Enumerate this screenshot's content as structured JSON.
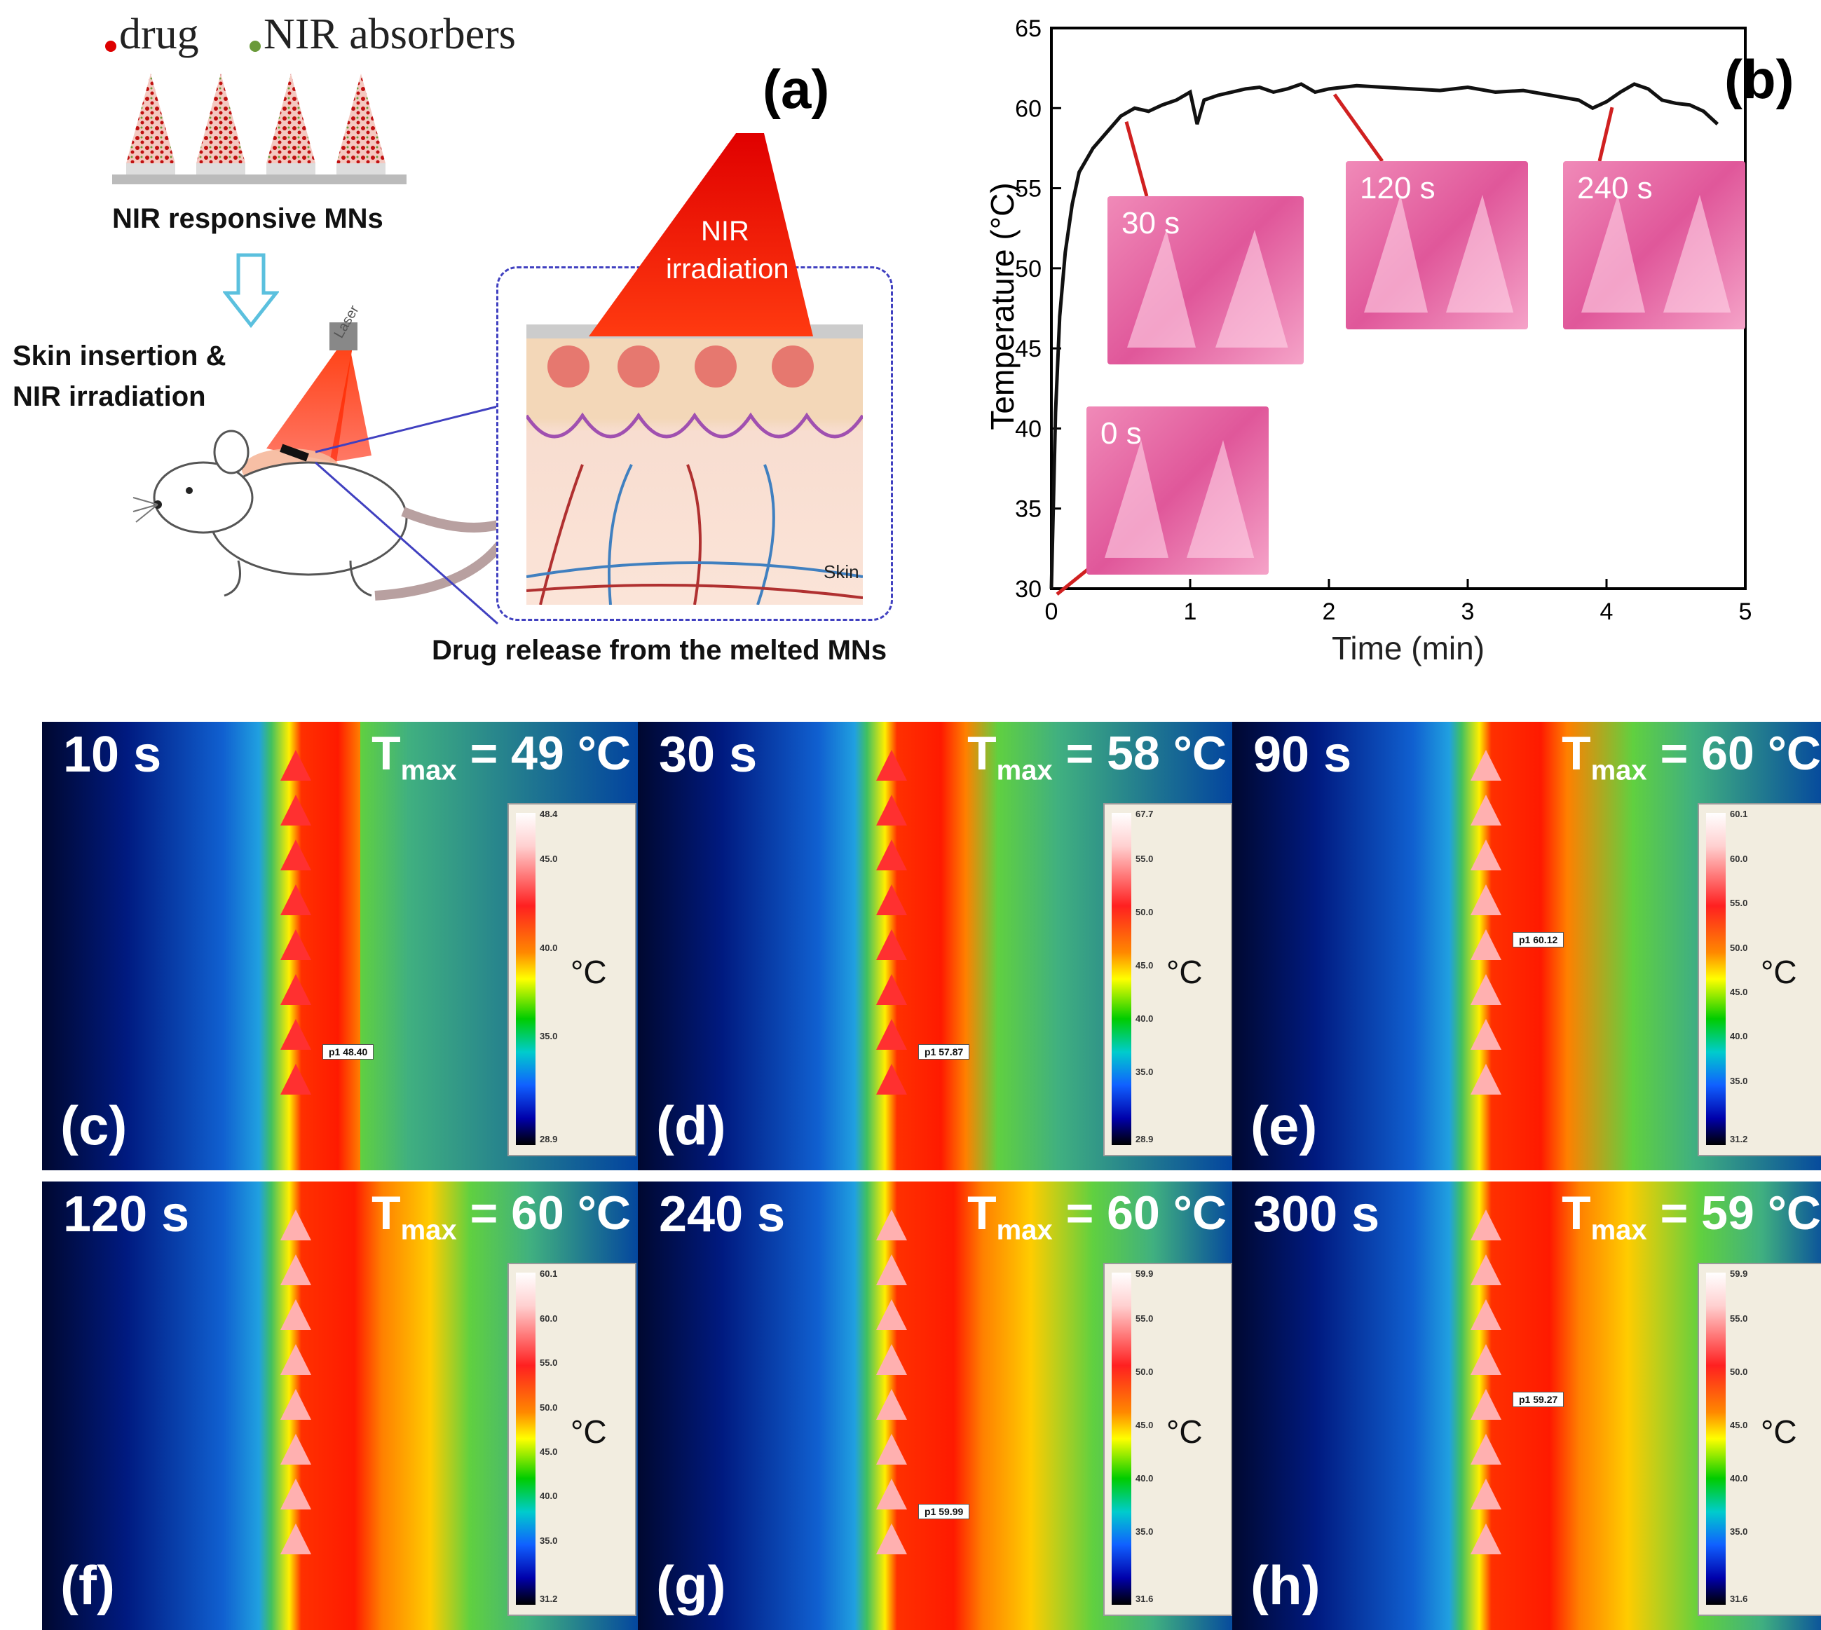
{
  "panel_a": {
    "legend_drug": "drug",
    "legend_nir": "NIR absorbers",
    "tag": "(a)",
    "caption_mns": "NIR responsive MNs",
    "caption_insertion_1": "Skin insertion &",
    "caption_insertion_2": "NIR irradiation",
    "laser_label": "Laser",
    "nir_label_1": "NIR",
    "nir_label_2": "irradiation",
    "skin_label": "Skin",
    "caption_release": "Drug release from the melted MNs"
  },
  "chart_data": {
    "type": "line",
    "title": "",
    "tag": "(b)",
    "xlabel": "Time (min)",
    "ylabel": "Temperature (°C)",
    "xlim": [
      0,
      5
    ],
    "ylim": [
      30,
      65
    ],
    "xticks": [
      "0",
      "1",
      "2",
      "3",
      "4",
      "5"
    ],
    "yticks": [
      "30",
      "35",
      "40",
      "45",
      "50",
      "55",
      "60",
      "65"
    ],
    "series": [
      {
        "name": "temperature",
        "x": [
          0,
          0.03,
          0.06,
          0.1,
          0.15,
          0.2,
          0.3,
          0.4,
          0.5,
          0.6,
          0.7,
          0.8,
          0.9,
          1.0,
          1.05,
          1.1,
          1.2,
          1.3,
          1.4,
          1.5,
          1.6,
          1.7,
          1.8,
          1.9,
          2.0,
          2.2,
          2.4,
          2.6,
          2.8,
          3.0,
          3.2,
          3.4,
          3.6,
          3.8,
          3.9,
          4.0,
          4.1,
          4.2,
          4.3,
          4.4,
          4.5,
          4.6,
          4.7,
          4.8
        ],
        "values": [
          30,
          41,
          47,
          51,
          54,
          56,
          57.5,
          58.5,
          59.5,
          60,
          59.8,
          60.2,
          60.5,
          61,
          59,
          60.5,
          60.8,
          61,
          61.2,
          61.3,
          61,
          61.2,
          61.5,
          61,
          61.2,
          61.4,
          61.3,
          61.2,
          61.1,
          61.3,
          61,
          61.1,
          60.8,
          60.5,
          60,
          60.4,
          61,
          61.5,
          61.2,
          60.5,
          60.3,
          60.2,
          59.8,
          59
        ]
      }
    ],
    "insets": [
      {
        "label": "0 s",
        "time": 0
      },
      {
        "label": "30 s",
        "time": 0.5
      },
      {
        "label": "120 s",
        "time": 2
      },
      {
        "label": "240 s",
        "time": 4
      }
    ]
  },
  "thermal_panels": [
    {
      "tag": "(c)",
      "time": "10 s",
      "tmax_prefix": "T",
      "tmax_sub": "max",
      "tmax_value": "= 49 °C",
      "probe": "p1  48.40",
      "scale_top": "48.4",
      "scale_bottom": "28.9",
      "ticks": [
        "45.0",
        "40.0",
        "35.0"
      ],
      "unit": "°C",
      "heat": 0.35
    },
    {
      "tag": "(d)",
      "time": "30 s",
      "tmax_prefix": "T",
      "tmax_sub": "max",
      "tmax_value": "= 58 °C",
      "probe": "p1  57.87",
      "scale_top": "67.7",
      "scale_bottom": "28.9",
      "ticks": [
        "55.0",
        "50.0",
        "45.0",
        "40.0",
        "35.0"
      ],
      "unit": "°C",
      "heat": 0.55
    },
    {
      "tag": "(e)",
      "time": "90 s",
      "tmax_prefix": "T",
      "tmax_sub": "max",
      "tmax_value": "= 60 °C",
      "probe": "p1  60.12",
      "scale_top": "60.1",
      "scale_bottom": "31.2",
      "ticks": [
        "60.0",
        "55.0",
        "50.0",
        "45.0",
        "40.0",
        "35.0"
      ],
      "unit": "°C",
      "heat": 0.7
    },
    {
      "tag": "(f)",
      "time": "120 s",
      "tmax_prefix": "T",
      "tmax_sub": "max",
      "tmax_value": "= 60 °C",
      "probe": "",
      "scale_top": "60.1",
      "scale_bottom": "31.2",
      "ticks": [
        "60.0",
        "55.0",
        "50.0",
        "45.0",
        "40.0",
        "35.0"
      ],
      "unit": "°C",
      "heat": 0.8
    },
    {
      "tag": "(g)",
      "time": "240 s",
      "tmax_prefix": "T",
      "tmax_sub": "max",
      "tmax_value": "= 60 °C",
      "probe": "p1  59.99",
      "scale_top": "59.9",
      "scale_bottom": "31.6",
      "ticks": [
        "55.0",
        "50.0",
        "45.0",
        "40.0",
        "35.0"
      ],
      "unit": "°C",
      "heat": 0.9
    },
    {
      "tag": "(h)",
      "time": "300 s",
      "tmax_prefix": "T",
      "tmax_sub": "max",
      "tmax_value": "= 59 °C",
      "probe": "p1  59.27",
      "scale_top": "59.9",
      "scale_bottom": "31.6",
      "ticks": [
        "55.0",
        "50.0",
        "45.0",
        "40.0",
        "35.0"
      ],
      "unit": "°C",
      "heat": 0.95
    }
  ]
}
